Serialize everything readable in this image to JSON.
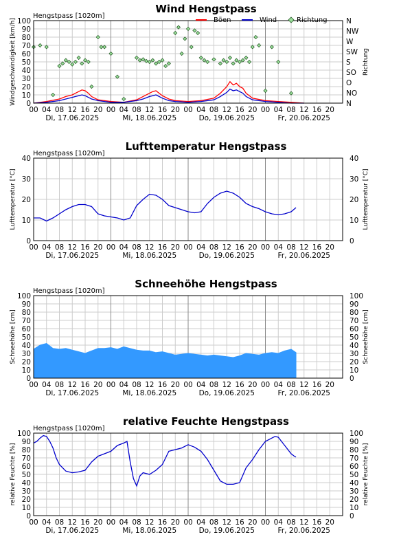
{
  "chart_data": [
    {
      "type": "line",
      "title": "Wind Hengstpass",
      "station": "Hengstpass [1020m]",
      "ylabel": "Windgeschwindigkeit [km/h]",
      "ylabel_right": "Richtung",
      "ylim": [
        0,
        100
      ],
      "y_ticks": [
        0,
        10,
        20,
        30,
        40,
        50,
        60,
        70,
        80,
        90,
        100
      ],
      "right_ticks": [
        "N",
        "NO",
        "O",
        "SO",
        "S",
        "SW",
        "W",
        "NW",
        "N"
      ],
      "x_ticks": [
        "00",
        "04",
        "08",
        "12",
        "16",
        "20",
        "00",
        "04",
        "08",
        "12",
        "16",
        "20",
        "00",
        "04",
        "08",
        "12",
        "16",
        "20",
        "00",
        "04",
        "08",
        "12",
        "16",
        "20"
      ],
      "day_labels": [
        "Di, 17.06.2025",
        "Mi, 18.06.2025",
        "Do, 19.06.2025",
        "Fr, 20.06.2025"
      ],
      "legend": [
        {
          "name": "Böen",
          "color": "#ff0000",
          "kind": "line"
        },
        {
          "name": "Wind",
          "color": "#0000cc",
          "kind": "line"
        },
        {
          "name": "Richtung",
          "color": "#99dd99",
          "kind": "diamond"
        }
      ],
      "series": [
        {
          "name": "Böen",
          "color": "#ff0000",
          "x": [
            0,
            4,
            8,
            10,
            12,
            13,
            14,
            15,
            16,
            17,
            18,
            20,
            22,
            24,
            28,
            32,
            34,
            36,
            37,
            38,
            39,
            40,
            42,
            44,
            48,
            52,
            56,
            58,
            60,
            61,
            62,
            63,
            64,
            65,
            66,
            68,
            72,
            76,
            80,
            84
          ],
          "values": [
            0,
            2,
            5,
            8,
            10,
            12,
            14,
            16,
            15,
            12,
            8,
            4,
            3,
            2,
            1,
            4,
            8,
            12,
            14,
            15,
            12,
            9,
            5,
            3,
            2,
            3,
            6,
            12,
            20,
            26,
            22,
            24,
            20,
            18,
            12,
            6,
            3,
            2,
            1,
            0
          ]
        },
        {
          "name": "Wind",
          "color": "#0000cc",
          "x": [
            0,
            4,
            8,
            10,
            12,
            13,
            14,
            15,
            16,
            17,
            18,
            20,
            22,
            24,
            28,
            32,
            34,
            36,
            37,
            38,
            39,
            40,
            42,
            44,
            48,
            52,
            56,
            58,
            60,
            61,
            62,
            63,
            64,
            65,
            66,
            68,
            72,
            76,
            80,
            84
          ],
          "values": [
            0,
            1,
            3,
            5,
            7,
            8,
            9,
            10,
            9,
            7,
            5,
            3,
            2,
            1,
            1,
            3,
            5,
            8,
            9,
            10,
            8,
            6,
            3,
            2,
            1,
            2,
            4,
            8,
            13,
            17,
            15,
            16,
            14,
            12,
            8,
            4,
            2,
            1,
            0,
            0
          ]
        },
        {
          "name": "Richtung",
          "color": "#99dd99",
          "x": [
            0,
            2,
            4,
            6,
            8,
            9,
            10,
            11,
            12,
            13,
            14,
            15,
            16,
            17,
            18,
            20,
            21,
            22,
            24,
            26,
            28,
            32,
            33,
            34,
            35,
            36,
            37,
            38,
            39,
            40,
            41,
            42,
            44,
            45,
            46,
            47,
            48,
            49,
            50,
            51,
            52,
            53,
            54,
            56,
            58,
            59,
            60,
            61,
            62,
            63,
            64,
            65,
            66,
            67,
            68,
            69,
            70,
            72,
            74,
            76,
            80
          ],
          "values": [
            68,
            70,
            68,
            10,
            45,
            48,
            52,
            50,
            47,
            50,
            55,
            48,
            52,
            50,
            20,
            80,
            68,
            68,
            60,
            32,
            5,
            55,
            52,
            53,
            51,
            50,
            52,
            48,
            50,
            52,
            45,
            48,
            85,
            92,
            60,
            78,
            90,
            68,
            88,
            85,
            55,
            52,
            50,
            53,
            48,
            52,
            50,
            55,
            48,
            52,
            50,
            52,
            55,
            50,
            68,
            80,
            70,
            15,
            68,
            50,
            12
          ]
        }
      ]
    },
    {
      "type": "line",
      "title": "Lufttemperatur Hengstpass",
      "station": "Hengstpass [1020m]",
      "ylabel": "Lufttemperatur [°C]",
      "ylabel_right": "Lufttemperatur [°C]",
      "ylim": [
        0,
        40
      ],
      "y_ticks": [
        0,
        10,
        20,
        30,
        40
      ],
      "x_ticks": [
        "00",
        "04",
        "08",
        "12",
        "16",
        "20",
        "00",
        "04",
        "08",
        "12",
        "16",
        "20",
        "00",
        "04",
        "08",
        "12",
        "16",
        "20",
        "00",
        "04",
        "08",
        "12",
        "16",
        "20"
      ],
      "day_labels": [
        "Di, 17.06.2025",
        "Mi, 18.06.2025",
        "Do, 19.06.2025",
        "Fr, 20.06.2025"
      ],
      "series": [
        {
          "name": "Lufttemperatur",
          "color": "#0000cc",
          "x": [
            0,
            2,
            4,
            6,
            8,
            10,
            12,
            14,
            16,
            18,
            20,
            22,
            24,
            26,
            28,
            30,
            32,
            34,
            36,
            38,
            40,
            42,
            44,
            46,
            48,
            50,
            52,
            54,
            56,
            58,
            60,
            62,
            64,
            66,
            68,
            70,
            72,
            74,
            76,
            78,
            80,
            81.5
          ],
          "values": [
            11,
            11,
            9.5,
            11,
            13,
            15,
            16.5,
            17.5,
            17.5,
            16.5,
            13,
            12,
            11.5,
            11,
            10,
            11,
            17,
            20,
            22.5,
            22,
            20,
            17,
            16,
            15,
            14,
            13.5,
            14,
            18,
            21,
            23,
            24,
            23,
            21,
            18,
            16.5,
            15.5,
            14,
            13,
            12.5,
            13,
            14,
            16
          ]
        }
      ]
    },
    {
      "type": "area",
      "title": "Schneehöhe Hengstpass",
      "station": "Hengstpass [1020m]",
      "ylabel": "Schneehöhe [cm]",
      "ylabel_right": "Schneehöhe [cm]",
      "ylim": [
        0,
        100
      ],
      "y_ticks": [
        0,
        10,
        20,
        30,
        40,
        50,
        60,
        70,
        80,
        90,
        100
      ],
      "x_ticks": [
        "00",
        "04",
        "08",
        "12",
        "16",
        "20",
        "00",
        "04",
        "08",
        "12",
        "16",
        "20",
        "00",
        "04",
        "08",
        "12",
        "16",
        "20",
        "00",
        "04",
        "08",
        "12",
        "16",
        "20"
      ],
      "day_labels": [
        "Di, 17.06.2025",
        "Mi, 18.06.2025",
        "Do, 19.06.2025",
        "Fr, 20.06.2025"
      ],
      "series": [
        {
          "name": "Schneehöhe",
          "color": "#3399ff",
          "x": [
            0,
            2,
            4,
            6,
            8,
            10,
            12,
            14,
            16,
            18,
            20,
            22,
            24,
            26,
            28,
            30,
            32,
            34,
            36,
            38,
            40,
            42,
            44,
            46,
            48,
            50,
            52,
            54,
            56,
            58,
            60,
            62,
            64,
            66,
            68,
            70,
            72,
            74,
            76,
            78,
            80,
            81.5
          ],
          "values": [
            35,
            40,
            42,
            36,
            35,
            36,
            34,
            32,
            30,
            33,
            36,
            36,
            37,
            35,
            38,
            36,
            34,
            33,
            33,
            31,
            32,
            30,
            28,
            29,
            30,
            29,
            28,
            27,
            28,
            27,
            26,
            25,
            27,
            30,
            29,
            28,
            30,
            31,
            30,
            33,
            35,
            31
          ]
        }
      ]
    },
    {
      "type": "line",
      "title": "relative Feuchte Hengstpass",
      "station": "Hengstpass [1020m]",
      "ylabel": "relative Feuchte [%]",
      "ylabel_right": "relative Feuchte [%]",
      "ylim": [
        0,
        100
      ],
      "y_ticks": [
        0,
        10,
        20,
        30,
        40,
        50,
        60,
        70,
        80,
        90,
        100
      ],
      "x_ticks": [
        "00",
        "04",
        "08",
        "12",
        "16",
        "20",
        "00",
        "04",
        "08",
        "12",
        "16",
        "20",
        "00",
        "04",
        "08",
        "12",
        "16",
        "20",
        "00",
        "04",
        "08",
        "12",
        "16",
        "20"
      ],
      "day_labels": [
        "Di, 17.06.2025",
        "Mi, 18.06.2025",
        "Do, 19.06.2025",
        "Fr, 20.06.2025"
      ],
      "series": [
        {
          "name": "relative Feuchte",
          "color": "#0000cc",
          "x": [
            0,
            1,
            2,
            3,
            4,
            5,
            6,
            7,
            8,
            9,
            10,
            12,
            14,
            16,
            18,
            20,
            22,
            24,
            26,
            28,
            29,
            30,
            31,
            32,
            33,
            34,
            36,
            38,
            40,
            42,
            44,
            46,
            48,
            50,
            52,
            54,
            56,
            58,
            60,
            62,
            64,
            66,
            68,
            70,
            72,
            74,
            75,
            76,
            77,
            78,
            79,
            80,
            81,
            81.5
          ],
          "values": [
            88,
            90,
            94,
            97,
            96,
            90,
            82,
            70,
            62,
            58,
            54,
            52,
            53,
            55,
            65,
            72,
            75,
            78,
            85,
            88,
            90,
            65,
            45,
            36,
            48,
            52,
            50,
            55,
            62,
            78,
            80,
            82,
            86,
            83,
            78,
            68,
            55,
            42,
            38,
            38,
            40,
            58,
            68,
            80,
            90,
            94,
            96,
            95,
            90,
            85,
            80,
            75,
            72,
            71
          ]
        }
      ]
    }
  ]
}
